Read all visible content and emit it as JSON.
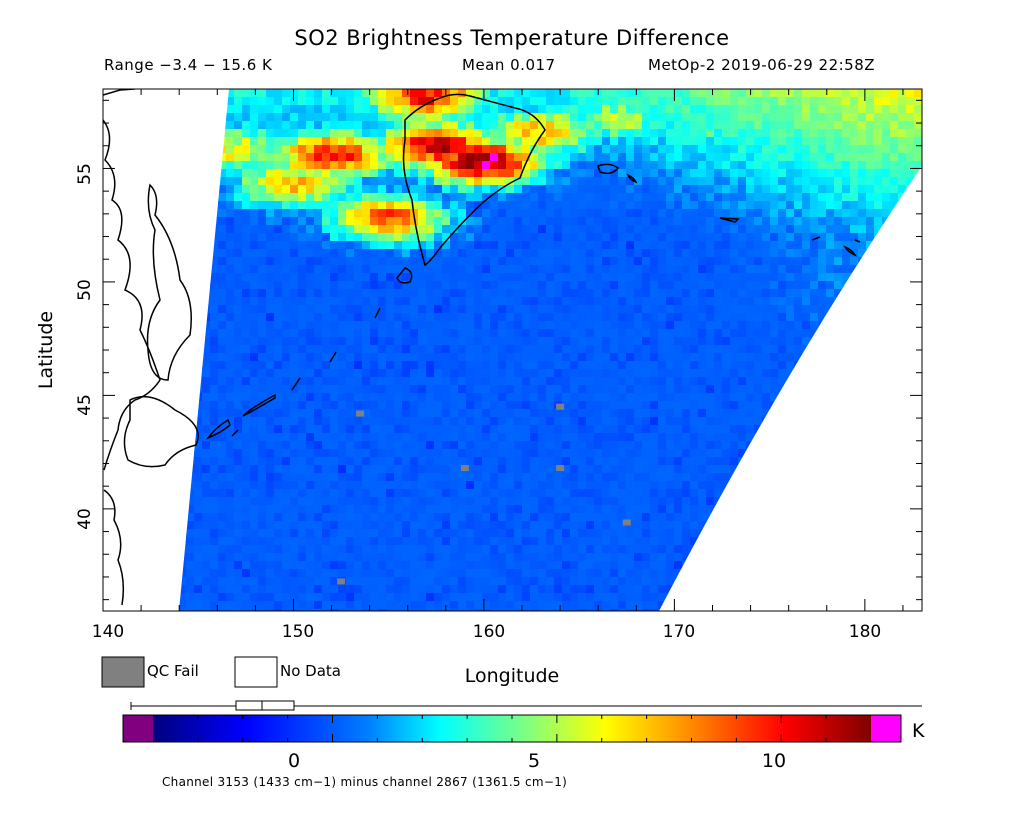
{
  "title": "SO2 Brightness Temperature Difference",
  "range_text": "Range −3.4 − 15.6 K",
  "mean_text": "Mean 0.017",
  "satellite_text": "MetOp-2 2019-06-29 22:58Z",
  "xlabel": "Longitude",
  "ylabel": "Latitude",
  "x_ticks": [
    "140",
    "150",
    "160",
    "170",
    "180"
  ],
  "y_ticks": [
    "40",
    "45",
    "50",
    "55"
  ],
  "legend": {
    "qc_fail": "QC Fail",
    "no_data": "No Data",
    "qc_color": "#808080"
  },
  "colorbar": {
    "ticks": [
      "0",
      "5",
      "10"
    ],
    "unit": "K",
    "min": -3.4,
    "max": 15.6,
    "low_color": "#800080",
    "high_color": "#ff00ff"
  },
  "caption": "Channel 3153 (1433 cm−1) minus channel 2867 (1361.5 cm−1)",
  "chart_data": {
    "type": "heatmap",
    "title": "SO2 Brightness Temperature Difference",
    "xlabel": "Longitude",
    "ylabel": "Latitude",
    "xlim": [
      140,
      183
    ],
    "ylim": [
      35.5,
      58.5
    ],
    "value_range": [
      -3.4,
      15.6
    ],
    "mean": 0.017,
    "units": "K",
    "colorbar_range": [
      -4,
      12
    ],
    "background_level": -1,
    "plumes": [
      {
        "lon": 157.5,
        "lat": 56.0,
        "value": 11
      },
      {
        "lon": 160.0,
        "lat": 55.3,
        "value": 12
      },
      {
        "lon": 152.0,
        "lat": 55.6,
        "value": 10
      },
      {
        "lon": 150.0,
        "lat": 54.3,
        "value": 7
      },
      {
        "lon": 163.0,
        "lat": 56.6,
        "value": 7
      },
      {
        "lon": 167.0,
        "lat": 57.2,
        "value": 5
      },
      {
        "lon": 172.0,
        "lat": 56.8,
        "value": 3
      },
      {
        "lon": 155.0,
        "lat": 52.8,
        "value": 9
      },
      {
        "lon": 157.0,
        "lat": 58.2,
        "value": 10
      },
      {
        "lon": 147.0,
        "lat": 55.8,
        "value": 6
      }
    ],
    "qc_fail_points": [
      {
        "lon": 153.5,
        "lat": 44.2
      },
      {
        "lon": 164.0,
        "lat": 44.5
      },
      {
        "lon": 159.0,
        "lat": 41.8
      },
      {
        "lon": 164.0,
        "lat": 41.8
      },
      {
        "lon": 152.5,
        "lat": 36.8
      },
      {
        "lon": 167.5,
        "lat": 39.4
      }
    ]
  }
}
